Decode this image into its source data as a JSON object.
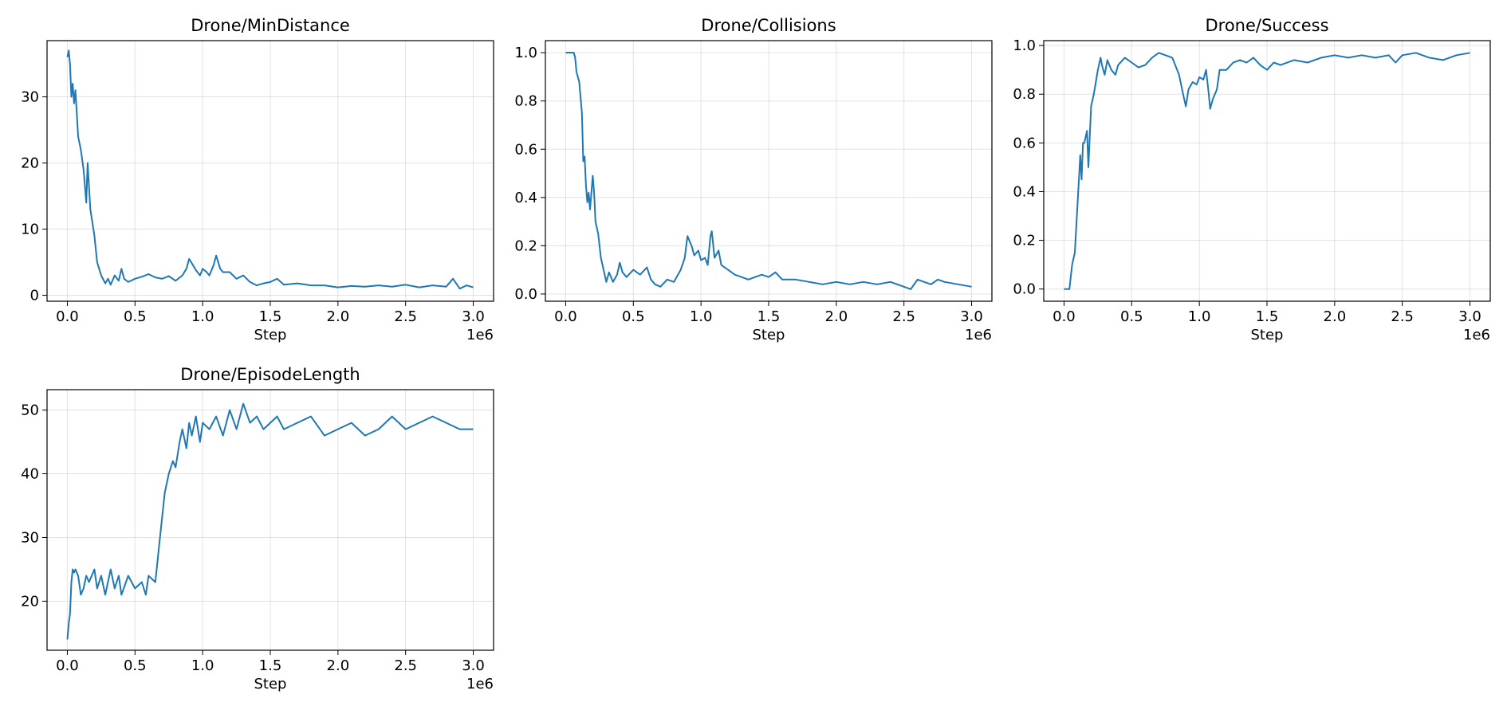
{
  "chart_data": [
    {
      "type": "line",
      "title": "Drone/MinDistance",
      "xlabel": "Step",
      "x_offset_label": "1e6",
      "xlim": [
        -0.15,
        3.15
      ],
      "ylim": [
        -0.9,
        38.5
      ],
      "xticks": [
        0,
        0.5,
        1,
        1.5,
        2,
        2.5,
        3
      ],
      "xtick_labels": [
        "0.0",
        "0.5",
        "1.0",
        "1.5",
        "2.0",
        "2.5",
        "3.0"
      ],
      "yticks": [
        0,
        10,
        20,
        30
      ],
      "ytick_labels": [
        "0",
        "10",
        "20",
        "30"
      ],
      "grid": true,
      "color": "#1f77b4",
      "series": [
        {
          "x": [
            0,
            0.01,
            0.02,
            0.03,
            0.04,
            0.05,
            0.06,
            0.08,
            0.1,
            0.12,
            0.14,
            0.15,
            0.17,
            0.2,
            0.22,
            0.25,
            0.28,
            0.3,
            0.32,
            0.35,
            0.38,
            0.4,
            0.42,
            0.45,
            0.5,
            0.55,
            0.6,
            0.65,
            0.7,
            0.75,
            0.8,
            0.85,
            0.88,
            0.9,
            0.93,
            0.95,
            0.98,
            1.0,
            1.03,
            1.05,
            1.08,
            1.1,
            1.13,
            1.15,
            1.2,
            1.25,
            1.3,
            1.35,
            1.4,
            1.45,
            1.5,
            1.55,
            1.6,
            1.7,
            1.8,
            1.9,
            2.0,
            2.1,
            2.2,
            2.3,
            2.4,
            2.5,
            2.6,
            2.7,
            2.8,
            2.85,
            2.9,
            2.95,
            3.0
          ],
          "y": [
            36,
            37,
            35,
            30,
            32,
            29,
            31,
            24,
            22,
            19,
            14,
            20,
            13,
            9,
            5,
            3,
            1.8,
            2.5,
            1.6,
            3,
            2.2,
            4,
            2.5,
            2,
            2.5,
            2.8,
            3.2,
            2.7,
            2.5,
            2.9,
            2.2,
            3,
            4,
            5.5,
            4.5,
            3.8,
            3,
            4,
            3.5,
            3,
            4.5,
            6,
            4,
            3.5,
            3.5,
            2.5,
            3,
            2,
            1.5,
            1.8,
            2,
            2.5,
            1.6,
            1.8,
            1.5,
            1.5,
            1.2,
            1.4,
            1.3,
            1.5,
            1.3,
            1.6,
            1.2,
            1.5,
            1.3,
            2.5,
            1,
            1.5,
            1.2
          ]
        }
      ]
    },
    {
      "type": "line",
      "title": "Drone/Collisions",
      "xlabel": "Step",
      "x_offset_label": "1e6",
      "xlim": [
        -0.15,
        3.15
      ],
      "ylim": [
        -0.03,
        1.05
      ],
      "xticks": [
        0,
        0.5,
        1,
        1.5,
        2,
        2.5,
        3
      ],
      "xtick_labels": [
        "0.0",
        "0.5",
        "1.0",
        "1.5",
        "2.0",
        "2.5",
        "3.0"
      ],
      "yticks": [
        0,
        0.2,
        0.4,
        0.6,
        0.8,
        1.0
      ],
      "ytick_labels": [
        "0.0",
        "0.2",
        "0.4",
        "0.6",
        "0.8",
        "1.0"
      ],
      "grid": true,
      "color": "#1f77b4",
      "series": [
        {
          "x": [
            0,
            0.02,
            0.04,
            0.06,
            0.07,
            0.08,
            0.1,
            0.12,
            0.13,
            0.14,
            0.15,
            0.16,
            0.17,
            0.18,
            0.2,
            0.21,
            0.22,
            0.24,
            0.26,
            0.28,
            0.3,
            0.32,
            0.35,
            0.38,
            0.4,
            0.42,
            0.45,
            0.5,
            0.55,
            0.6,
            0.63,
            0.66,
            0.7,
            0.75,
            0.8,
            0.85,
            0.88,
            0.9,
            0.93,
            0.95,
            0.98,
            1.0,
            1.03,
            1.05,
            1.07,
            1.08,
            1.1,
            1.13,
            1.15,
            1.2,
            1.25,
            1.3,
            1.35,
            1.4,
            1.45,
            1.5,
            1.55,
            1.6,
            1.7,
            1.8,
            1.9,
            2.0,
            2.1,
            2.2,
            2.3,
            2.4,
            2.5,
            2.55,
            2.6,
            2.7,
            2.75,
            2.8,
            2.9,
            3.0
          ],
          "y": [
            1,
            1,
            1,
            1,
            0.98,
            0.92,
            0.88,
            0.75,
            0.55,
            0.57,
            0.45,
            0.38,
            0.42,
            0.35,
            0.49,
            0.42,
            0.3,
            0.25,
            0.15,
            0.1,
            0.05,
            0.09,
            0.05,
            0.08,
            0.13,
            0.09,
            0.07,
            0.1,
            0.08,
            0.11,
            0.06,
            0.04,
            0.03,
            0.06,
            0.05,
            0.1,
            0.15,
            0.24,
            0.2,
            0.16,
            0.18,
            0.14,
            0.15,
            0.12,
            0.24,
            0.26,
            0.15,
            0.18,
            0.12,
            0.1,
            0.08,
            0.07,
            0.06,
            0.07,
            0.08,
            0.07,
            0.09,
            0.06,
            0.06,
            0.05,
            0.04,
            0.05,
            0.04,
            0.05,
            0.04,
            0.05,
            0.03,
            0.02,
            0.06,
            0.04,
            0.06,
            0.05,
            0.04,
            0.03
          ]
        }
      ]
    },
    {
      "type": "line",
      "title": "Drone/Success",
      "xlabel": "Step",
      "x_offset_label": "1e6",
      "xlim": [
        -0.15,
        3.15
      ],
      "ylim": [
        -0.05,
        1.02
      ],
      "xticks": [
        0,
        0.5,
        1,
        1.5,
        2,
        2.5,
        3
      ],
      "xtick_labels": [
        "0.0",
        "0.5",
        "1.0",
        "1.5",
        "2.0",
        "2.5",
        "3.0"
      ],
      "yticks": [
        0,
        0.2,
        0.4,
        0.6,
        0.8,
        1.0
      ],
      "ytick_labels": [
        "0.0",
        "0.2",
        "0.4",
        "0.6",
        "0.8",
        "1.0"
      ],
      "grid": true,
      "color": "#1f77b4",
      "series": [
        {
          "x": [
            0,
            0.02,
            0.04,
            0.05,
            0.06,
            0.08,
            0.1,
            0.12,
            0.13,
            0.14,
            0.15,
            0.17,
            0.18,
            0.2,
            0.22,
            0.25,
            0.27,
            0.28,
            0.3,
            0.32,
            0.35,
            0.38,
            0.4,
            0.45,
            0.5,
            0.55,
            0.6,
            0.65,
            0.7,
            0.75,
            0.8,
            0.85,
            0.88,
            0.9,
            0.92,
            0.95,
            0.98,
            1.0,
            1.03,
            1.05,
            1.07,
            1.08,
            1.1,
            1.13,
            1.15,
            1.2,
            1.25,
            1.3,
            1.35,
            1.4,
            1.45,
            1.5,
            1.55,
            1.6,
            1.7,
            1.8,
            1.9,
            2.0,
            2.1,
            2.2,
            2.3,
            2.4,
            2.45,
            2.5,
            2.6,
            2.7,
            2.8,
            2.9,
            3.0
          ],
          "y": [
            0,
            0,
            0,
            0.05,
            0.1,
            0.15,
            0.35,
            0.55,
            0.45,
            0.6,
            0.6,
            0.65,
            0.5,
            0.75,
            0.8,
            0.9,
            0.95,
            0.92,
            0.88,
            0.94,
            0.9,
            0.88,
            0.92,
            0.95,
            0.93,
            0.91,
            0.92,
            0.95,
            0.97,
            0.96,
            0.95,
            0.88,
            0.8,
            0.75,
            0.82,
            0.85,
            0.84,
            0.87,
            0.86,
            0.9,
            0.8,
            0.74,
            0.78,
            0.82,
            0.9,
            0.9,
            0.93,
            0.94,
            0.93,
            0.95,
            0.92,
            0.9,
            0.93,
            0.92,
            0.94,
            0.93,
            0.95,
            0.96,
            0.95,
            0.96,
            0.95,
            0.96,
            0.93,
            0.96,
            0.97,
            0.95,
            0.94,
            0.96,
            0.97
          ]
        }
      ]
    },
    {
      "type": "line",
      "title": "Drone/EpisodeLength",
      "xlabel": "Step",
      "x_offset_label": "1e6",
      "xlim": [
        -0.15,
        3.15
      ],
      "ylim": [
        12.3,
        53.2
      ],
      "xticks": [
        0,
        0.5,
        1,
        1.5,
        2,
        2.5,
        3
      ],
      "xtick_labels": [
        "0.0",
        "0.5",
        "1.0",
        "1.5",
        "2.0",
        "2.5",
        "3.0"
      ],
      "yticks": [
        20,
        30,
        40,
        50
      ],
      "ytick_labels": [
        "20",
        "30",
        "40",
        "50"
      ],
      "grid": true,
      "color": "#1f77b4",
      "series": [
        {
          "x": [
            0,
            0.01,
            0.02,
            0.03,
            0.04,
            0.05,
            0.06,
            0.08,
            0.1,
            0.12,
            0.14,
            0.16,
            0.2,
            0.22,
            0.25,
            0.28,
            0.3,
            0.32,
            0.35,
            0.38,
            0.4,
            0.45,
            0.5,
            0.55,
            0.58,
            0.6,
            0.65,
            0.68,
            0.7,
            0.72,
            0.75,
            0.78,
            0.8,
            0.83,
            0.85,
            0.88,
            0.9,
            0.92,
            0.95,
            0.98,
            1.0,
            1.05,
            1.1,
            1.15,
            1.2,
            1.25,
            1.3,
            1.35,
            1.4,
            1.45,
            1.5,
            1.55,
            1.6,
            1.7,
            1.8,
            1.9,
            2.0,
            2.1,
            2.2,
            2.3,
            2.4,
            2.5,
            2.6,
            2.7,
            2.8,
            2.9,
            3.0
          ],
          "y": [
            14,
            16.5,
            18,
            23,
            25,
            24.5,
            25,
            24,
            21,
            22,
            24,
            23,
            25,
            22,
            24,
            21,
            23,
            25,
            22,
            24,
            21,
            24,
            22,
            23,
            21,
            24,
            23,
            29,
            33,
            37,
            40,
            42,
            41,
            45,
            47,
            44,
            48,
            46,
            49,
            45,
            48,
            47,
            49,
            46,
            50,
            47,
            51,
            48,
            49,
            47,
            48,
            49,
            47,
            48,
            49,
            46,
            47,
            48,
            46,
            47,
            49,
            47,
            48,
            49,
            48,
            47,
            47
          ]
        }
      ]
    }
  ]
}
